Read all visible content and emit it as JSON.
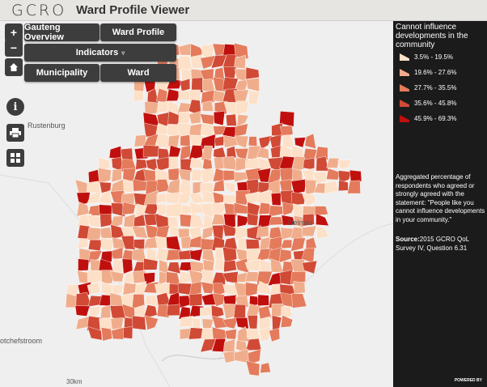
{
  "header": {
    "logo": "GCRO",
    "title": "Ward Profile Viewer"
  },
  "controls": {
    "zoom_in": "+",
    "zoom_out": "−",
    "gauteng_overview": "Gauteng Overview",
    "ward_profile": "Ward Profile",
    "indicators": "Indicators",
    "indicators_caret": "▿",
    "municipality": "Municipality",
    "ward": "Ward"
  },
  "icons": [
    "plus-icon",
    "minus-icon",
    "home-icon",
    "info-icon",
    "print-icon",
    "grid-icon"
  ],
  "map": {
    "places": [
      "Rustenburg",
      "Delmas",
      "otchefstroom"
    ],
    "scale": "30km"
  },
  "legend": {
    "title": "Cannot influence developments in the community",
    "classes": [
      {
        "label": "3.5% - 19.5%",
        "color": "#fde0c8"
      },
      {
        "label": "19.6% - 27.6%",
        "color": "#f0ad8c"
      },
      {
        "label": "27.7% - 35.5%",
        "color": "#e37b5c"
      },
      {
        "label": "35.6% - 45.8%",
        "color": "#d04a36"
      },
      {
        "label": "45.9% - 69.3%",
        "color": "#c0100e"
      }
    ]
  },
  "description": "Aggregated percentage of respondents who agreed or strongly agreed with the statement: \"People like you cannot influence developments in your community.\"",
  "source": {
    "label": "Source:",
    "text": "2015 GCRO QoL Survey IV, Question 6.31"
  },
  "powered": "POWERED BY"
}
